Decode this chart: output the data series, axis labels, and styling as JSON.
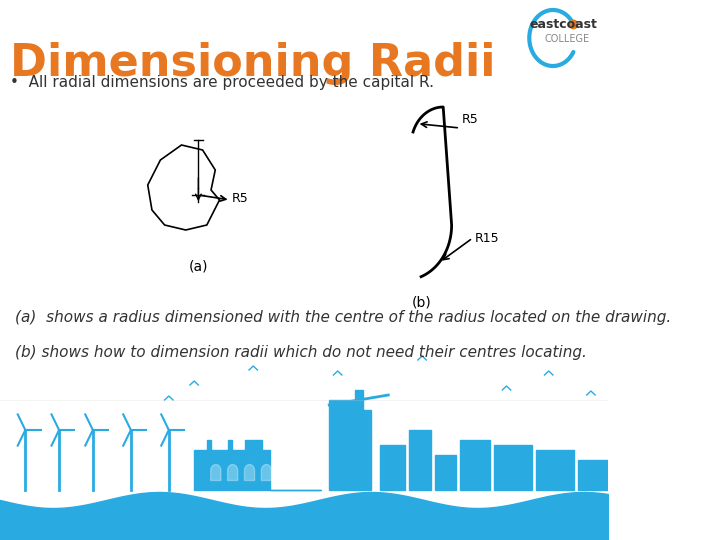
{
  "title": "Dimensioning Radii",
  "title_color": "#E87722",
  "bullet_text": "All radial dimensions are proceeded by the capital R.",
  "caption_a": "(a)  shows a radius dimensioned with the centre of the radius located on the drawing.",
  "caption_b": "(b) shows how to dimension radii which do not need their centres locating.",
  "bg_color": "#ffffff",
  "text_color": "#333333",
  "skyline_color": "#29ABE2",
  "label_a": "(a)",
  "label_b": "(b)",
  "r5_label": "R5",
  "r5_label2": "R5",
  "r15_label": "R15"
}
